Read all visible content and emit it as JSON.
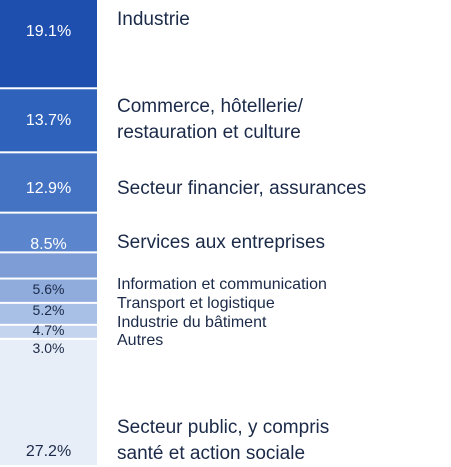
{
  "chart_data": {
    "type": "stacked_bar",
    "categories": [
      "Industrie",
      "Commerce, hôtellerie/\nrestauration et culture",
      "Secteur financier, assurances",
      "Services aux entreprises",
      "Information et communication",
      "Transport et logistique",
      "Industrie du bâtiment",
      "Autres",
      "Secteur public, y compris\nsanté et action sociale"
    ],
    "values": [
      19.1,
      13.7,
      12.9,
      8.5,
      5.6,
      5.2,
      4.7,
      3.0,
      27.2
    ],
    "value_labels": [
      "19.1%",
      "13.7%",
      "12.9%",
      "8.5%",
      "5.6%",
      "5.2%",
      "4.7%",
      "3.0%",
      "27.2%"
    ],
    "colors": [
      "#1f4fae",
      "#2f62bb",
      "#4573c4",
      "#5b85cc",
      "#7e9dd7",
      "#90acdc",
      "#a9c0e6",
      "#c5d4ee",
      "#e7eef8"
    ]
  }
}
